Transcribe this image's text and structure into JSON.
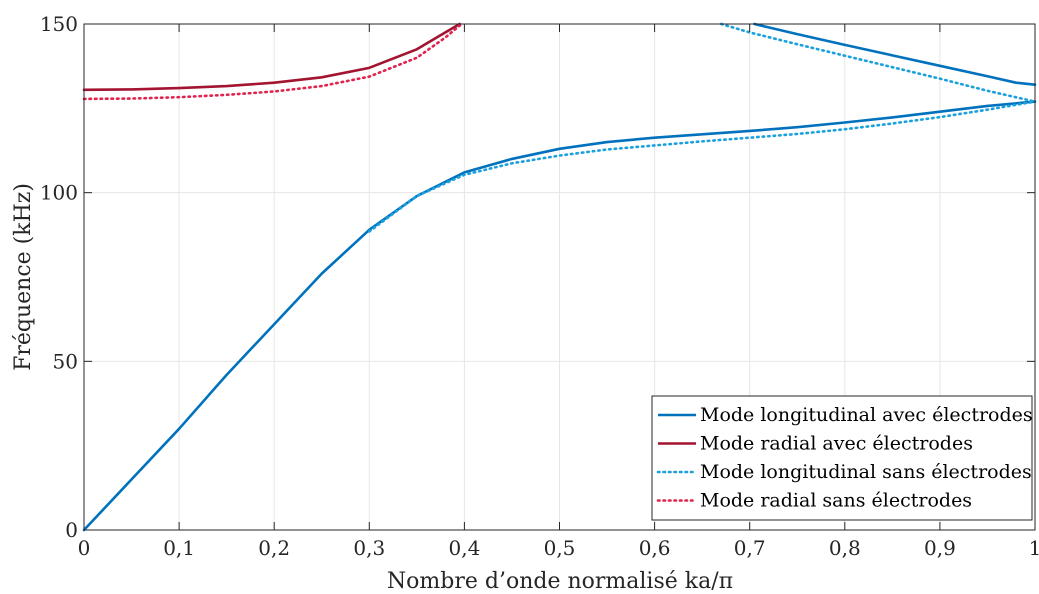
{
  "chart_data": {
    "type": "line",
    "xlabel": "Nombre d’onde normalisé ka/π",
    "ylabel": "Fréquence (kHz)",
    "xlim": [
      0,
      1
    ],
    "ylim": [
      0,
      150
    ],
    "xticks": [
      0,
      0.1,
      0.2,
      0.3,
      0.4,
      0.5,
      0.6,
      0.7,
      0.8,
      0.9,
      1
    ],
    "xtick_labels": [
      "0",
      "0,1",
      "0,2",
      "0,3",
      "0,4",
      "0,5",
      "0,6",
      "0,7",
      "0,8",
      "0,9",
      "1"
    ],
    "yticks": [
      0,
      50,
      100,
      150
    ],
    "ytick_labels": [
      "0",
      "50",
      "100",
      "150"
    ],
    "grid": true,
    "legend_position": "bottom-right",
    "series": [
      {
        "name": "Mode longitudinal avec électrodes",
        "color": "#0072BD",
        "dash": "solid",
        "points": [
          [
            0,
            0
          ],
          [
            0.05,
            15
          ],
          [
            0.1,
            30
          ],
          [
            0.15,
            46
          ],
          [
            0.2,
            61
          ],
          [
            0.25,
            76
          ],
          [
            0.3,
            89
          ],
          [
            0.35,
            99
          ],
          [
            0.4,
            106
          ],
          [
            0.45,
            110
          ],
          [
            0.5,
            113
          ],
          [
            0.55,
            115
          ],
          [
            0.6,
            116.3
          ],
          [
            0.65,
            117.3
          ],
          [
            0.7,
            118.3
          ],
          [
            0.75,
            119.4
          ],
          [
            0.8,
            120.8
          ],
          [
            0.85,
            122.3
          ],
          [
            0.9,
            124
          ],
          [
            0.95,
            125.7
          ],
          [
            1,
            127
          ]
        ]
      },
      {
        "name": "Mode longitudinal avec électrodes",
        "color": "#0072BD",
        "dash": "solid",
        "points": [
          [
            0.705,
            150
          ],
          [
            0.75,
            147
          ],
          [
            0.8,
            143.8
          ],
          [
            0.85,
            140.7
          ],
          [
            0.9,
            137.6
          ],
          [
            0.95,
            134.5
          ],
          [
            0.98,
            132.6
          ],
          [
            1,
            132
          ]
        ]
      },
      {
        "name": "Mode radial avec électrodes",
        "color": "#A2142F",
        "dash": "solid",
        "points": [
          [
            0,
            130.5
          ],
          [
            0.05,
            130.6
          ],
          [
            0.1,
            131
          ],
          [
            0.15,
            131.6
          ],
          [
            0.2,
            132.6
          ],
          [
            0.25,
            134.2
          ],
          [
            0.3,
            137
          ],
          [
            0.35,
            142.5
          ],
          [
            0.38,
            147.5
          ],
          [
            0.395,
            150
          ]
        ]
      },
      {
        "name": "Mode longitudinal sans électrodes",
        "color": "#1BA0DE",
        "dash": "dotted",
        "points": [
          [
            0.3,
            88.5
          ],
          [
            0.35,
            99
          ],
          [
            0.4,
            105.3
          ],
          [
            0.45,
            108.7
          ],
          [
            0.5,
            111
          ],
          [
            0.55,
            112.8
          ],
          [
            0.6,
            114
          ],
          [
            0.65,
            115.2
          ],
          [
            0.7,
            116.3
          ],
          [
            0.75,
            117.4
          ],
          [
            0.8,
            118.8
          ],
          [
            0.85,
            120.5
          ],
          [
            0.9,
            122.4
          ],
          [
            0.95,
            124.6
          ],
          [
            1,
            127
          ]
        ]
      },
      {
        "name": "Mode longitudinal sans électrodes",
        "color": "#1BA0DE",
        "dash": "dotted",
        "points": [
          [
            0.67,
            150
          ],
          [
            0.7,
            147.5
          ],
          [
            0.75,
            144
          ],
          [
            0.8,
            140.6
          ],
          [
            0.85,
            137.2
          ],
          [
            0.9,
            133.8
          ],
          [
            0.95,
            130.2
          ],
          [
            1,
            127
          ]
        ]
      },
      {
        "name": "Mode radial sans électrodes",
        "color": "#E0244F",
        "dash": "dotted",
        "points": [
          [
            0,
            127.8
          ],
          [
            0.05,
            127.9
          ],
          [
            0.1,
            128.3
          ],
          [
            0.15,
            129
          ],
          [
            0.2,
            130
          ],
          [
            0.25,
            131.6
          ],
          [
            0.3,
            134.4
          ],
          [
            0.35,
            140
          ],
          [
            0.38,
            146
          ],
          [
            0.397,
            150
          ]
        ]
      }
    ],
    "legend": [
      {
        "label": "Mode longitudinal avec électrodes",
        "color": "#0072BD",
        "dash": "solid"
      },
      {
        "label": "Mode radial avec électrodes",
        "color": "#A2142F",
        "dash": "solid"
      },
      {
        "label": "Mode longitudinal sans électrodes",
        "color": "#1BA0DE",
        "dash": "dotted"
      },
      {
        "label": "Mode radial sans électrodes",
        "color": "#E0244F",
        "dash": "dotted"
      }
    ]
  }
}
